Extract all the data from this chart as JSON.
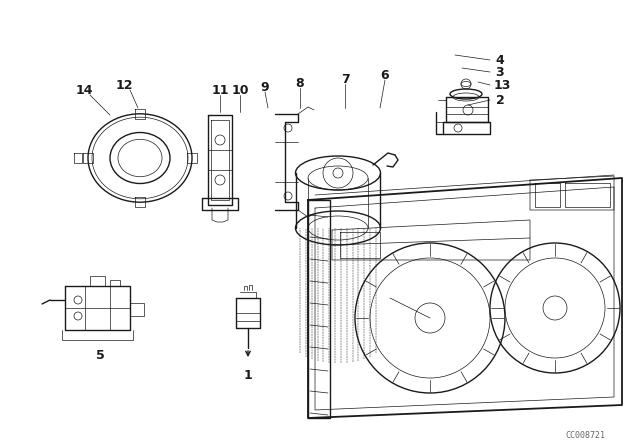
{
  "bg_color": "#ffffff",
  "line_color": "#1a1a1a",
  "fig_width": 6.4,
  "fig_height": 4.48,
  "dpi": 100,
  "watermark": "CC008721",
  "label_fs": 9,
  "lw_main": 1.0,
  "lw_thin": 0.5
}
